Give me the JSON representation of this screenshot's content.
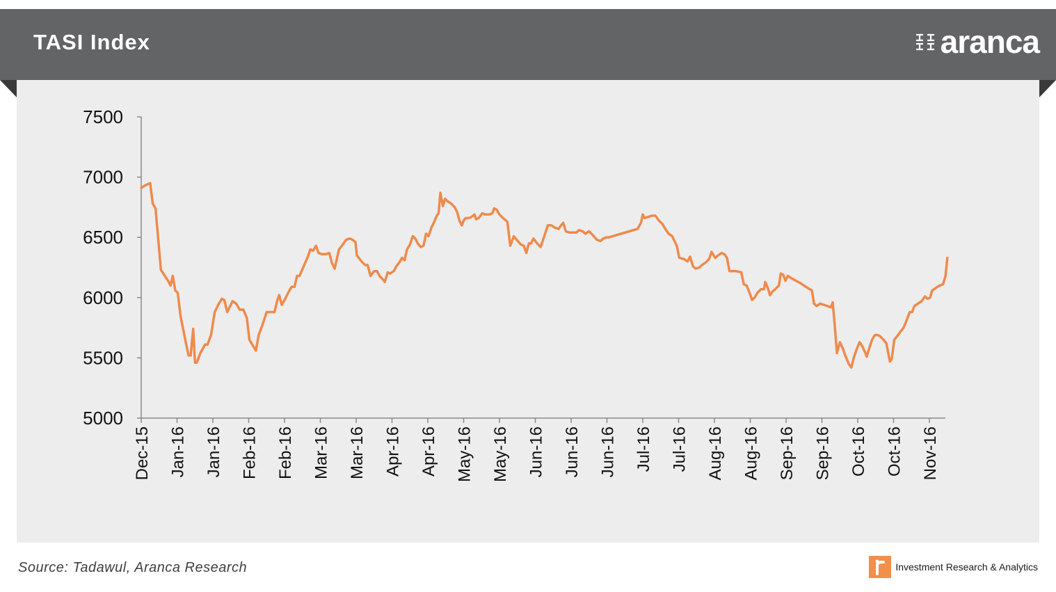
{
  "header": {
    "title": "TASI Index",
    "logo_text": "aranca",
    "background": "#636466"
  },
  "footer": {
    "source": "Source: Tadawul, Aranca Research",
    "brand_tagline": "Investment  Research & Analytics",
    "brand_icon": "aranca-i-icon",
    "accent": "#f0904a"
  },
  "chart_data": {
    "type": "line",
    "title": "TASI Index",
    "xlabel": "",
    "ylabel": "",
    "ylim": [
      5000,
      7500
    ],
    "yticks": [
      5000,
      5500,
      6000,
      6500,
      7000,
      7500
    ],
    "grid": false,
    "line_color": "#ee8a4c",
    "categories": [
      "Dec-15",
      "Jan-16",
      "Jan-16",
      "Feb-16",
      "Feb-16",
      "Mar-16",
      "Mar-16",
      "Apr-16",
      "Apr-16",
      "May-16",
      "May-16",
      "Jun-16",
      "Jun-16",
      "Jun-16",
      "Jul-16",
      "Jul-16",
      "Aug-16",
      "Aug-16",
      "Sep-16",
      "Sep-16",
      "Oct-16",
      "Oct-16",
      "Nov-16"
    ],
    "series": [
      {
        "name": "",
        "values": [
          [
            0,
            6910
          ],
          [
            0.1,
            6930
          ],
          [
            0.25,
            6950
          ],
          [
            0.32,
            6780
          ],
          [
            0.4,
            6740
          ],
          [
            0.55,
            6230
          ],
          [
            0.75,
            6140
          ],
          [
            0.82,
            6100
          ],
          [
            0.88,
            6180
          ],
          [
            0.95,
            6060
          ],
          [
            1.02,
            6040
          ],
          [
            1.1,
            5840
          ],
          [
            1.25,
            5620
          ],
          [
            1.32,
            5520
          ],
          [
            1.38,
            5520
          ],
          [
            1.45,
            5740
          ],
          [
            1.5,
            5460
          ],
          [
            1.55,
            5460
          ],
          [
            1.65,
            5540
          ],
          [
            1.78,
            5610
          ],
          [
            1.85,
            5610
          ],
          [
            1.95,
            5690
          ],
          [
            2.05,
            5880
          ],
          [
            2.15,
            5940
          ],
          [
            2.25,
            5990
          ],
          [
            2.32,
            5980
          ],
          [
            2.4,
            5880
          ],
          [
            2.55,
            5970
          ],
          [
            2.65,
            5950
          ],
          [
            2.75,
            5900
          ],
          [
            2.85,
            5900
          ],
          [
            2.95,
            5830
          ],
          [
            3.02,
            5650
          ],
          [
            3.12,
            5600
          ],
          [
            3.2,
            5560
          ],
          [
            3.28,
            5690
          ],
          [
            3.38,
            5770
          ],
          [
            3.5,
            5880
          ],
          [
            3.6,
            5880
          ],
          [
            3.72,
            5880
          ],
          [
            3.8,
            5980
          ],
          [
            3.85,
            6020
          ],
          [
            3.92,
            5940
          ],
          [
            4.02,
            5990
          ],
          [
            4.12,
            6050
          ],
          [
            4.2,
            6090
          ],
          [
            4.28,
            6090
          ],
          [
            4.35,
            6180
          ],
          [
            4.42,
            6180
          ],
          [
            4.55,
            6270
          ],
          [
            4.65,
            6340
          ],
          [
            4.72,
            6400
          ],
          [
            4.8,
            6390
          ],
          [
            4.88,
            6430
          ],
          [
            4.95,
            6370
          ],
          [
            5.05,
            6360
          ],
          [
            5.15,
            6360
          ],
          [
            5.25,
            6370
          ],
          [
            5.32,
            6290
          ],
          [
            5.4,
            6240
          ],
          [
            5.52,
            6400
          ],
          [
            5.6,
            6430
          ],
          [
            5.72,
            6480
          ],
          [
            5.82,
            6490
          ],
          [
            5.9,
            6480
          ],
          [
            5.98,
            6460
          ],
          [
            6.02,
            6350
          ],
          [
            6.15,
            6300
          ],
          [
            6.25,
            6270
          ],
          [
            6.32,
            6270
          ],
          [
            6.4,
            6180
          ],
          [
            6.5,
            6220
          ],
          [
            6.58,
            6220
          ],
          [
            6.65,
            6180
          ],
          [
            6.75,
            6150
          ],
          [
            6.8,
            6130
          ],
          [
            6.88,
            6210
          ],
          [
            6.95,
            6200
          ],
          [
            7.05,
            6220
          ],
          [
            7.12,
            6260
          ],
          [
            7.2,
            6290
          ],
          [
            7.28,
            6330
          ],
          [
            7.35,
            6310
          ],
          [
            7.42,
            6400
          ],
          [
            7.5,
            6440
          ],
          [
            7.58,
            6510
          ],
          [
            7.65,
            6490
          ],
          [
            7.72,
            6450
          ],
          [
            7.8,
            6420
          ],
          [
            7.88,
            6430
          ],
          [
            7.95,
            6530
          ],
          [
            8.02,
            6510
          ],
          [
            8.1,
            6580
          ],
          [
            8.18,
            6630
          ],
          [
            8.25,
            6680
          ],
          [
            8.3,
            6700
          ],
          [
            8.35,
            6870
          ],
          [
            8.42,
            6760
          ],
          [
            8.48,
            6820
          ],
          [
            8.55,
            6800
          ],
          [
            8.65,
            6780
          ],
          [
            8.75,
            6750
          ],
          [
            8.82,
            6710
          ],
          [
            8.88,
            6640
          ],
          [
            8.95,
            6600
          ],
          [
            9.0,
            6640
          ],
          [
            9.05,
            6660
          ],
          [
            9.15,
            6660
          ],
          [
            9.22,
            6670
          ],
          [
            9.3,
            6690
          ],
          [
            9.35,
            6650
          ],
          [
            9.42,
            6660
          ],
          [
            9.52,
            6700
          ],
          [
            9.6,
            6690
          ],
          [
            9.72,
            6690
          ],
          [
            9.8,
            6700
          ],
          [
            9.85,
            6740
          ],
          [
            9.92,
            6730
          ],
          [
            10.0,
            6690
          ],
          [
            10.1,
            6660
          ],
          [
            10.22,
            6630
          ],
          [
            10.3,
            6430
          ],
          [
            10.4,
            6510
          ],
          [
            10.48,
            6480
          ],
          [
            10.6,
            6440
          ],
          [
            10.68,
            6430
          ],
          [
            10.75,
            6370
          ],
          [
            10.82,
            6450
          ],
          [
            10.88,
            6450
          ],
          [
            10.95,
            6490
          ],
          [
            11.05,
            6450
          ],
          [
            11.15,
            6420
          ],
          [
            11.25,
            6510
          ],
          [
            11.35,
            6600
          ],
          [
            11.45,
            6600
          ],
          [
            11.55,
            6580
          ],
          [
            11.65,
            6570
          ],
          [
            11.72,
            6600
          ],
          [
            11.78,
            6620
          ],
          [
            11.85,
            6550
          ],
          [
            11.95,
            6540
          ],
          [
            12.05,
            6540
          ],
          [
            12.15,
            6540
          ],
          [
            12.22,
            6560
          ],
          [
            12.32,
            6550
          ],
          [
            12.4,
            6530
          ],
          [
            12.5,
            6550
          ],
          [
            12.6,
            6520
          ],
          [
            12.72,
            6480
          ],
          [
            12.82,
            6470
          ],
          [
            12.9,
            6490
          ],
          [
            12.98,
            6500
          ],
          [
            13.05,
            6500
          ],
          [
            13.85,
            6570
          ],
          [
            13.95,
            6620
          ],
          [
            14.0,
            6690
          ],
          [
            14.05,
            6660
          ],
          [
            14.15,
            6670
          ],
          [
            14.25,
            6680
          ],
          [
            14.35,
            6680
          ],
          [
            14.45,
            6640
          ],
          [
            14.55,
            6610
          ],
          [
            14.65,
            6560
          ],
          [
            14.72,
            6530
          ],
          [
            14.82,
            6510
          ],
          [
            14.95,
            6430
          ],
          [
            15.02,
            6330
          ],
          [
            15.15,
            6320
          ],
          [
            15.25,
            6300
          ],
          [
            15.32,
            6340
          ],
          [
            15.4,
            6260
          ],
          [
            15.48,
            6240
          ],
          [
            15.58,
            6250
          ],
          [
            15.65,
            6270
          ],
          [
            15.75,
            6290
          ],
          [
            15.85,
            6320
          ],
          [
            15.92,
            6380
          ],
          [
            16.02,
            6330
          ],
          [
            16.1,
            6350
          ],
          [
            16.2,
            6370
          ],
          [
            16.28,
            6360
          ],
          [
            16.35,
            6330
          ],
          [
            16.42,
            6220
          ],
          [
            16.5,
            6220
          ],
          [
            16.6,
            6220
          ],
          [
            16.75,
            6210
          ],
          [
            16.82,
            6110
          ],
          [
            16.9,
            6100
          ],
          [
            16.98,
            6040
          ],
          [
            17.05,
            5980
          ],
          [
            17.12,
            6000
          ],
          [
            17.2,
            6040
          ],
          [
            17.3,
            6070
          ],
          [
            17.38,
            6070
          ],
          [
            17.42,
            6130
          ],
          [
            17.5,
            6070
          ],
          [
            17.55,
            6020
          ],
          [
            17.62,
            6050
          ],
          [
            17.7,
            6070
          ],
          [
            17.8,
            6100
          ],
          [
            17.85,
            6200
          ],
          [
            17.92,
            6190
          ],
          [
            17.98,
            6140
          ],
          [
            18.05,
            6180
          ],
          [
            18.15,
            6160
          ],
          [
            18.4,
            6120
          ],
          [
            18.6,
            6080
          ],
          [
            18.72,
            6060
          ],
          [
            18.78,
            5950
          ],
          [
            18.85,
            5930
          ],
          [
            18.95,
            5950
          ],
          [
            19.05,
            5940
          ],
          [
            19.15,
            5930
          ],
          [
            19.25,
            5920
          ],
          [
            19.3,
            5960
          ],
          [
            19.35,
            5800
          ],
          [
            19.42,
            5540
          ],
          [
            19.5,
            5630
          ],
          [
            19.58,
            5580
          ],
          [
            19.65,
            5520
          ],
          [
            19.75,
            5450
          ],
          [
            19.82,
            5420
          ],
          [
            19.9,
            5510
          ],
          [
            19.98,
            5580
          ],
          [
            20.05,
            5630
          ],
          [
            20.12,
            5600
          ],
          [
            20.2,
            5550
          ],
          [
            20.25,
            5510
          ],
          [
            20.32,
            5580
          ],
          [
            20.4,
            5650
          ],
          [
            20.48,
            5690
          ],
          [
            20.55,
            5690
          ],
          [
            20.62,
            5680
          ],
          [
            20.72,
            5650
          ],
          [
            20.8,
            5620
          ],
          [
            20.85,
            5540
          ],
          [
            20.9,
            5470
          ],
          [
            20.95,
            5490
          ],
          [
            21.02,
            5650
          ],
          [
            21.1,
            5680
          ],
          [
            21.2,
            5720
          ],
          [
            21.28,
            5750
          ],
          [
            21.35,
            5800
          ],
          [
            21.45,
            5880
          ],
          [
            21.52,
            5880
          ],
          [
            21.58,
            5930
          ],
          [
            21.68,
            5950
          ],
          [
            21.78,
            5970
          ],
          [
            21.88,
            6010
          ],
          [
            21.95,
            5990
          ],
          [
            22.02,
            6000
          ],
          [
            22.08,
            6060
          ],
          [
            22.18,
            6080
          ],
          [
            22.28,
            6100
          ],
          [
            22.38,
            6110
          ],
          [
            22.45,
            6180
          ],
          [
            22.5,
            6330
          ]
        ]
      }
    ]
  }
}
